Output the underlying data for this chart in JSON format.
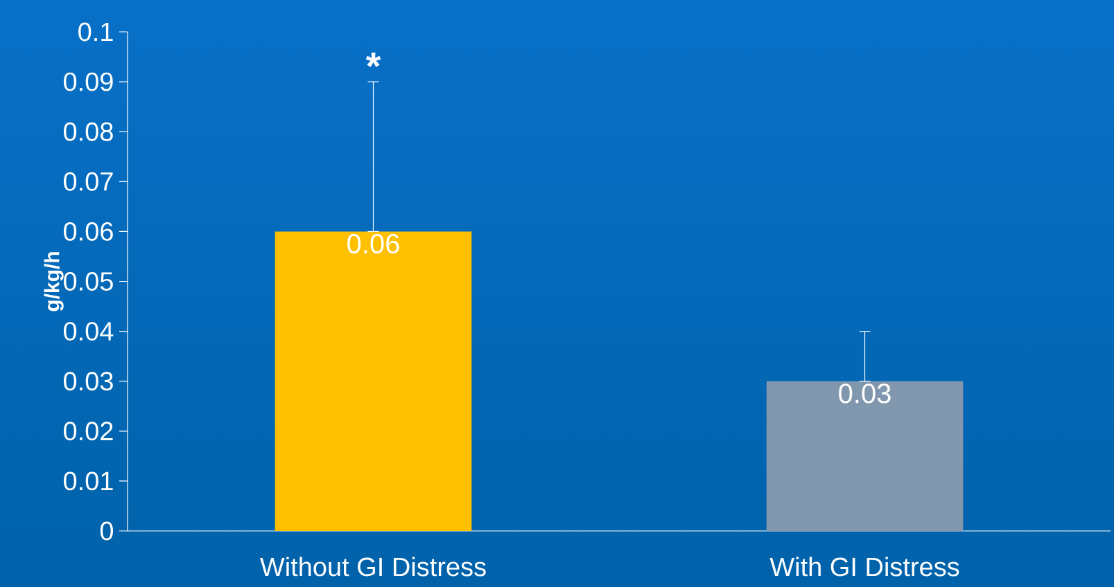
{
  "chart_data": {
    "type": "bar",
    "ylabel": "g/kg/h",
    "categories": [
      "Without GI Distress",
      "With GI Distress"
    ],
    "values": [
      0.06,
      0.03
    ],
    "colors": [
      "#ffc000",
      "#8097ad"
    ],
    "errors": [
      [
        0.06,
        0.09
      ],
      [
        0.03,
        0.04
      ]
    ],
    "ylim": [
      0,
      0.1
    ],
    "yticks": [
      0,
      0.01,
      0.02,
      0.03,
      0.04,
      0.05,
      0.06,
      0.07,
      0.08,
      0.09,
      0.1
    ],
    "data_labels": true,
    "grid": false,
    "annotations": [
      "*"
    ]
  }
}
